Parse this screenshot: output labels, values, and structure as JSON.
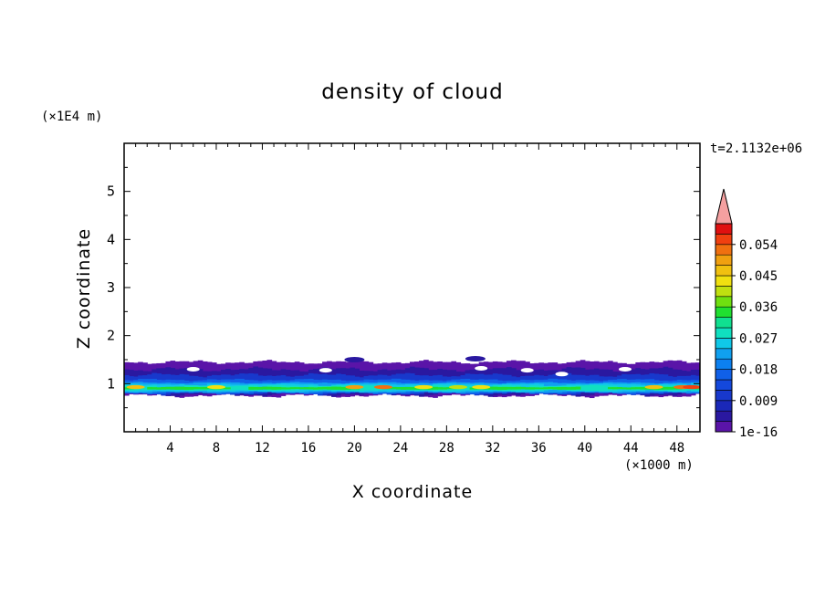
{
  "chart_data": {
    "type": "heatmap",
    "title": "density of cloud",
    "xlabel": "X coordinate",
    "ylabel": "Z coordinate",
    "x_unit": "(×1000 m)",
    "y_unit": "(×1E4 m)",
    "time_label": "t=2.1132e+06",
    "xlim": [
      0,
      50
    ],
    "ylim": [
      0,
      6
    ],
    "x_ticks": [
      "4",
      "8",
      "12",
      "16",
      "20",
      "24",
      "28",
      "32",
      "36",
      "40",
      "44",
      "48"
    ],
    "y_ticks": [
      "1",
      "2",
      "3",
      "4",
      "5"
    ],
    "colorbar": {
      "tick_labels": [
        "1e-16",
        "0.009",
        "0.018",
        "0.027",
        "0.036",
        "0.045",
        "0.054"
      ],
      "levels": [
        1e-16,
        0.003,
        0.006,
        0.009,
        0.012,
        0.015,
        0.018,
        0.021,
        0.024,
        0.027,
        0.03,
        0.033,
        0.036,
        0.039,
        0.042,
        0.045,
        0.048,
        0.051,
        0.054,
        0.057
      ],
      "colors": [
        "#5a14a8",
        "#2a18a0",
        "#1a28b8",
        "#1838cc",
        "#1448dc",
        "#1060e8",
        "#0c80f0",
        "#10a0f0",
        "#10c8e8",
        "#10e0c0",
        "#10e090",
        "#20e030",
        "#70e010",
        "#c0e010",
        "#f0e010",
        "#f0c010",
        "#f0a010",
        "#f07010",
        "#f04010",
        "#e01010"
      ],
      "over_color": "#f4a0a0"
    },
    "field_description_values": {
      "cloud_base_z": 0.75,
      "cloud_top_z": 1.45,
      "core_band_z": [
        0.85,
        1.05
      ],
      "core_max": 0.054
    }
  }
}
